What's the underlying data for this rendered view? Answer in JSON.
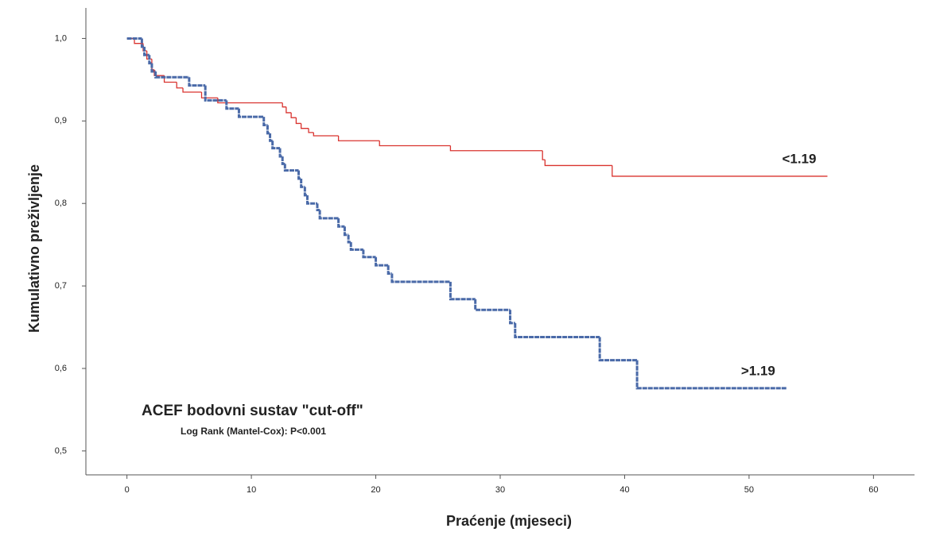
{
  "chart_data": {
    "type": "step",
    "title": "ACEF bodovni sustav \"cut-off\"",
    "subtitle": "Log Rank (Mantel-Cox): P<0.001",
    "x_label": "Praćenje (mjeseci)",
    "y_label": "Kumulativno preživljenje",
    "xlim": [
      -3.3,
      63.3
    ],
    "ylim": [
      0.471,
      1.037
    ],
    "xticks": [
      0,
      10,
      20,
      30,
      40,
      50,
      60
    ],
    "yticks": [
      {
        "value": 0.5,
        "label": "0,5"
      },
      {
        "value": 0.6,
        "label": "0,6"
      },
      {
        "value": 0.7,
        "label": "0,7"
      },
      {
        "value": 0.8,
        "label": "0,8"
      },
      {
        "value": 0.9,
        "label": "0,9"
      },
      {
        "value": 1.0,
        "label": "1,0"
      }
    ],
    "series": [
      {
        "name": "<1.19",
        "color": "#d9332f",
        "x": [
          0,
          0.6,
          1.3,
          1.6,
          2.0,
          2.2,
          3.0,
          4.0,
          4.5,
          6.0,
          7.3,
          12.5,
          12.8,
          13.2,
          13.6,
          14.0,
          14.6,
          15.0,
          17.0,
          20.3,
          26.0,
          33.4,
          33.6,
          39.0,
          56.3
        ],
        "values": [
          1.0,
          0.994,
          0.985,
          0.975,
          0.962,
          0.955,
          0.947,
          0.94,
          0.935,
          0.928,
          0.922,
          0.917,
          0.91,
          0.904,
          0.897,
          0.891,
          0.886,
          0.882,
          0.876,
          0.87,
          0.864,
          0.853,
          0.846,
          0.833,
          0.833
        ]
      },
      {
        "name": ">1.19",
        "color": "#4a6aa8",
        "x": [
          0,
          1.2,
          1.4,
          1.8,
          2.0,
          2.3,
          5.0,
          6.3,
          8.0,
          9.0,
          11.0,
          11.3,
          11.5,
          11.7,
          12.3,
          12.5,
          12.7,
          13.8,
          14.0,
          14.3,
          14.5,
          15.3,
          15.5,
          17.0,
          17.5,
          17.8,
          18.0,
          19.0,
          20.0,
          21.0,
          21.3,
          26.0,
          28.0,
          30.8,
          31.2,
          38.0,
          41.0,
          53.0
        ],
        "values": [
          1.0,
          0.99,
          0.98,
          0.97,
          0.96,
          0.953,
          0.943,
          0.925,
          0.915,
          0.905,
          0.895,
          0.885,
          0.876,
          0.867,
          0.857,
          0.848,
          0.84,
          0.83,
          0.82,
          0.81,
          0.8,
          0.792,
          0.782,
          0.772,
          0.762,
          0.753,
          0.744,
          0.735,
          0.725,
          0.715,
          0.705,
          0.684,
          0.671,
          0.655,
          0.638,
          0.61,
          0.576,
          0.576
        ]
      }
    ]
  }
}
